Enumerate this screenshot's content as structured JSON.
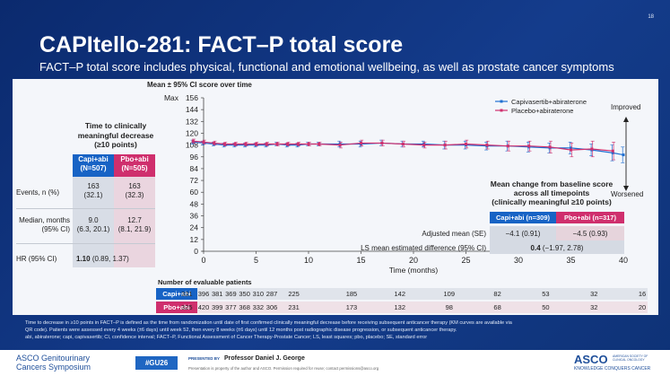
{
  "slide_number": "18",
  "title": "CAPItello-281: FACT–P total score",
  "subtitle": "FACT–P total score includes physical, functional and emotional wellbeing, as well as prostate cancer symptoms",
  "left_table": {
    "title_line1": "Time to clinically",
    "title_line2": "meaningful decrease",
    "title_line3": "(≥10 points)",
    "capi_header_1": "Capi+abi",
    "capi_header_2": "(N=507)",
    "pbo_header_1": "Pbo+abi",
    "pbo_header_2": "(N=505)",
    "events_label": "Events, n (%)",
    "events_capi_1": "163",
    "events_capi_2": "(32.1)",
    "events_pbo_1": "163",
    "events_pbo_2": "(32.3)",
    "median_label_1": "Median, months",
    "median_label_2": "(95% CI)",
    "median_capi_1": "9.0",
    "median_capi_2": "(6.3, 20.1)",
    "median_pbo_1": "12.7",
    "median_pbo_2": "(8.1, 21.9)",
    "hr_label": "HR (95% CI)",
    "hr_value": "1.10",
    "hr_ci": "(0.89, 1.37)"
  },
  "chart_data": {
    "type": "line",
    "title": "Mean ± 95% CI score over time",
    "xlabel": "Time (months)",
    "ylabel": "",
    "ylim_label": "Max",
    "ylim": [
      0,
      156
    ],
    "xlim": [
      0,
      40
    ],
    "y_ticks": [
      0,
      12,
      24,
      36,
      48,
      60,
      72,
      84,
      96,
      108,
      120,
      132,
      144,
      156
    ],
    "y_tick_labels": [
      "0",
      "12",
      "24",
      "36",
      "48",
      "60",
      "72",
      "84",
      "96",
      "108",
      "120",
      "132",
      "144",
      "156"
    ],
    "x_ticks": [
      0,
      5,
      10,
      15,
      20,
      25,
      30,
      35,
      40
    ],
    "x_tick_labels": [
      "0",
      "5",
      "10",
      "15",
      "20",
      "25",
      "30",
      "35",
      "40"
    ],
    "series": [
      {
        "name": "Capivasertib+abiraterone",
        "color": "#1f6fd1",
        "x": [
          -1,
          0,
          1,
          2,
          3,
          4,
          5,
          6,
          7,
          8,
          9,
          10,
          11,
          13,
          15,
          17,
          19,
          21,
          23,
          25,
          27,
          29,
          31,
          33,
          35,
          37,
          39,
          40
        ],
        "y": [
          111,
          110,
          109,
          108,
          108,
          108,
          108,
          108,
          109,
          108,
          108,
          109,
          109,
          109,
          109,
          110,
          109,
          109,
          108,
          108,
          107,
          107,
          106,
          105,
          105,
          103,
          100,
          98
        ],
        "ci": [
          2,
          2,
          2,
          2,
          2,
          2,
          2,
          2,
          2,
          2,
          2,
          2,
          2,
          3,
          3,
          3,
          3,
          3,
          4,
          4,
          4,
          5,
          5,
          5,
          6,
          6,
          8,
          8
        ]
      },
      {
        "name": "Placebo+abiraterone",
        "color": "#d0306e",
        "x": [
          -1,
          0,
          1,
          2,
          3,
          4,
          5,
          6,
          7,
          8,
          9,
          10,
          11,
          13,
          15,
          17,
          19,
          21,
          23,
          25,
          27,
          29,
          31,
          33,
          35,
          37,
          39
        ],
        "y": [
          112,
          111,
          110,
          109,
          109,
          109,
          109,
          109,
          109,
          109,
          109,
          109,
          109,
          108,
          110,
          110,
          109,
          108,
          108,
          109,
          108,
          107,
          107,
          106,
          103,
          104,
          102
        ],
        "ci": [
          2,
          2,
          2,
          2,
          2,
          2,
          2,
          2,
          2,
          2,
          2,
          2,
          2,
          3,
          3,
          3,
          3,
          3,
          4,
          4,
          4,
          5,
          5,
          6,
          7,
          8,
          9
        ]
      }
    ],
    "legend_position": "top-right",
    "improved_label": "Improved",
    "worsened_label": "Worsened"
  },
  "mean_change": {
    "title_line1": "Mean change from baseline score",
    "title_line2": "across all timepoints",
    "title_line3": "(clinically meaningful ≥10 points)",
    "capi_header": "Capi+abi (n=309)",
    "pbo_header": "Pbo+abi (n=317)",
    "adjusted_label": "Adjusted mean (SE)",
    "adjusted_capi": "−4.1 (0.91)",
    "adjusted_pbo": "−4.5 (0.93)",
    "ls_label": "LS mean estimated difference (95% CI)",
    "ls_value": "0.4",
    "ls_ci": "(−1.97, 2.78)"
  },
  "patients_at_risk": {
    "label": "Number of evaluable patients",
    "capi_label": "Capi+abi",
    "pbo_label": "Pbo+abi",
    "capi_values": [
      "331",
      "396",
      "381",
      "369",
      "350",
      "310",
      "287",
      "225",
      "185",
      "142",
      "109",
      "82",
      "53",
      "32",
      "16"
    ],
    "pbo_values": [
      "325",
      "420",
      "399",
      "377",
      "368",
      "332",
      "306",
      "231",
      "173",
      "132",
      "98",
      "68",
      "50",
      "32",
      "20"
    ]
  },
  "footnotes": {
    "line1": "Time to decrease in ≥10 points in FACT–P is defined as the time from randomization until date of first confirmed clinically meaningful decrease before receiving subsequent anticancer therapy (KM curves are available via",
    "line2": "QR code). Patients were assessed every 4 weeks (±6 days) until week 52, then every 8 weeks (±6 days) until 12 months post radiographic disease progression, or subsequent anticancer therapy.",
    "line3": "abi, abiraterone; capi, capivasertib; CI, confidence interval; FACT–P, Functional Assessment of Cancer Therapy-Prostate Cancer; LS, least squares; pbo, placebo; SE, standard error"
  },
  "footer": {
    "asco_gu_line1": "ASCO Genitourinary",
    "asco_gu_line2": "Cancers Symposium",
    "hashtag": "#GU26",
    "presented_by_label": "PRESENTED BY",
    "presenter": "Professor Daniel J. George",
    "presentation_note": "Presentation is property of the author and ASCO. Permission required for reuse; contact permissions@asco.org",
    "asco_logo": "ASCO",
    "asco_sub": "AMERICAN SOCIETY OF CLINICAL ONCOLOGY",
    "asco_tagline": "KNOWLEDGE CONQUERS CANCER"
  }
}
